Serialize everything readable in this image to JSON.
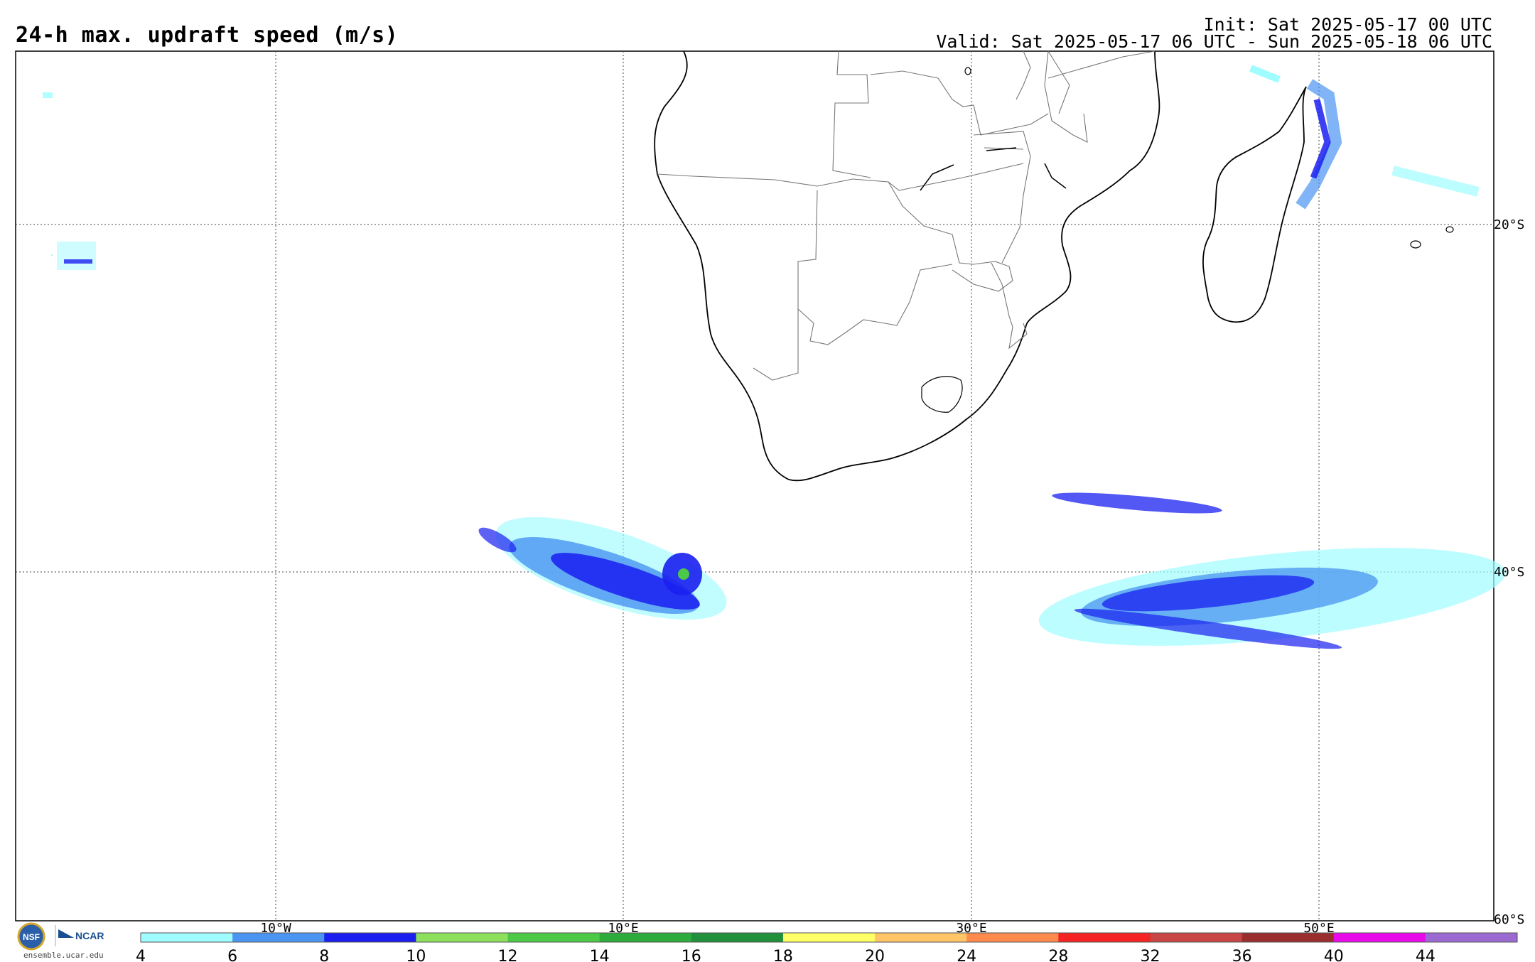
{
  "header": {
    "title": "24-h max. updraft speed (m/s)",
    "init": "Init: Sat 2025-05-17 00 UTC",
    "valid": "Valid: Sat 2025-05-17 06 UTC - Sun 2025-05-18 06 UTC"
  },
  "map": {
    "lon_labels": [
      "10°W",
      "10°E",
      "30°E",
      "50°E"
    ],
    "lat_labels": [
      "20°S",
      "40°S",
      "60°S"
    ]
  },
  "colorbar": {
    "ticks": [
      "4",
      "6",
      "8",
      "10",
      "12",
      "14",
      "16",
      "18",
      "20",
      "24",
      "28",
      "32",
      "36",
      "40",
      "44"
    ],
    "colors": [
      "#9ffcff",
      "#4a94f2",
      "#1a1ff0",
      "#8ce05c",
      "#4cc946",
      "#2eab3d",
      "#20903a",
      "#ffff66",
      "#ffc566",
      "#ff8a4d",
      "#f52323",
      "#c84545",
      "#9a2e2e",
      "#e80ae8",
      "#9a6ad2"
    ]
  },
  "logos": {
    "nsf": "NSF",
    "ncar": "NCAR",
    "site": "ensemble.ucar.edu"
  },
  "icons": {
    "nsf": "nsf-logo-icon",
    "ncar": "ncar-logo-icon"
  }
}
